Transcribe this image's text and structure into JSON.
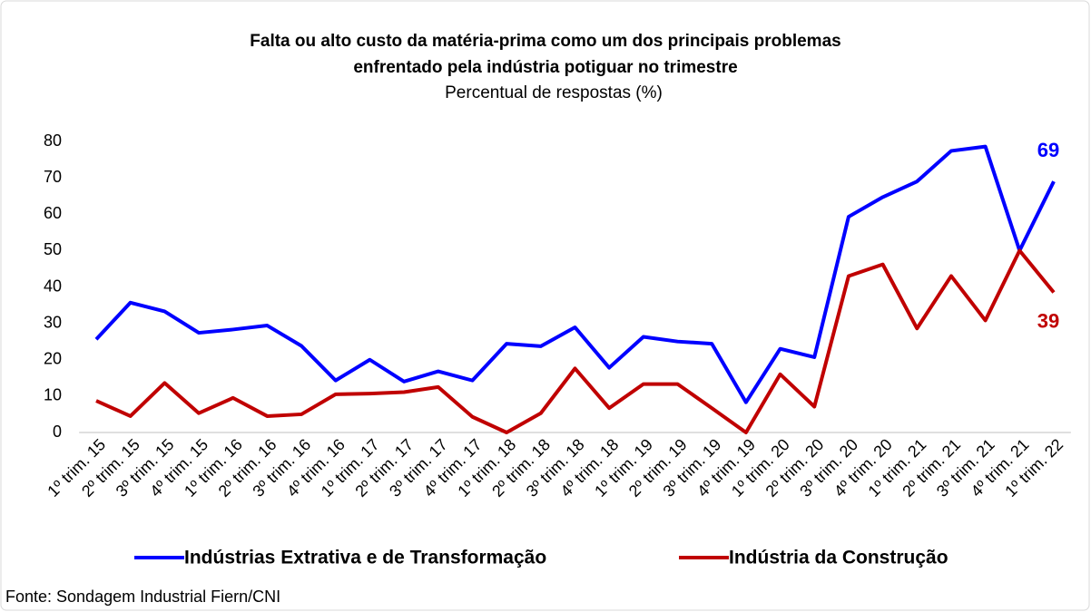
{
  "chart_data": {
    "type": "line",
    "title": [
      "Falta ou alto custo da matéria-prima como um dos principais problemas",
      "enfrentado pela indústria potiguar no trimestre"
    ],
    "subtitle": "Percentual de respostas (%)",
    "source": "Fonte: Sondagem Industrial Fiern/CNI",
    "categories": [
      "1º trim. 15",
      "2º trim. 15",
      "3º trim. 15",
      "4º trim. 15",
      "1º trim. 16",
      "2º trim. 16",
      "3º trim. 16",
      "4º trim. 16",
      "1º trim. 17",
      "2º trim. 17",
      "3º trim. 17",
      "4º trim. 17",
      "1º trim. 18",
      "2º trim. 18",
      "3º trim. 18",
      "4º trim. 18",
      "1º trim. 19",
      "2º trim. 19",
      "3º trim. 19",
      "4º trim. 19",
      "1º trim. 20",
      "2º trim. 20",
      "3º trim. 20",
      "4º trim. 20",
      "1º trim. 21",
      "2º trim. 21",
      "3º trim. 21",
      "4º trim. 21",
      "1º trim. 22"
    ],
    "series": [
      {
        "name": "Indústrias Extrativa e de Transformação",
        "color": "#0000ff",
        "values": [
          25.6,
          35.7,
          33.3,
          27.4,
          28.3,
          29.4,
          23.8,
          14.3,
          20.0,
          14.0,
          16.8,
          14.3,
          24.4,
          23.7,
          28.9,
          17.8,
          26.3,
          25.0,
          24.4,
          8.3,
          23.0,
          20.7,
          59.3,
          64.7,
          69.0,
          77.4,
          78.6,
          50.0,
          69
        ],
        "value_labels": [
          null,
          null,
          null,
          null,
          null,
          null,
          null,
          null,
          null,
          null,
          null,
          null,
          null,
          null,
          null,
          null,
          null,
          null,
          null,
          null,
          null,
          null,
          null,
          null,
          null,
          null,
          null,
          null,
          "69"
        ]
      },
      {
        "name": "Indústria da Construção",
        "color": "#c00000",
        "values": [
          8.7,
          4.5,
          13.6,
          5.3,
          9.5,
          4.5,
          5.0,
          10.5,
          10.7,
          11.1,
          12.5,
          4.3,
          0,
          5.3,
          17.6,
          6.7,
          13.3,
          13.3,
          6.7,
          0,
          16.0,
          7.1,
          43.0,
          46.2,
          28.6,
          43.0,
          30.8,
          50.0,
          38.5
        ],
        "value_labels": [
          null,
          null,
          null,
          null,
          null,
          null,
          null,
          null,
          null,
          null,
          null,
          null,
          null,
          null,
          null,
          null,
          null,
          null,
          null,
          null,
          null,
          null,
          null,
          null,
          null,
          null,
          null,
          null,
          "39"
        ]
      }
    ],
    "ylim": [
      0,
      80
    ],
    "yticks": [
      0,
      10,
      20,
      30,
      40,
      50,
      60,
      70,
      80
    ],
    "legend": "bottom"
  }
}
